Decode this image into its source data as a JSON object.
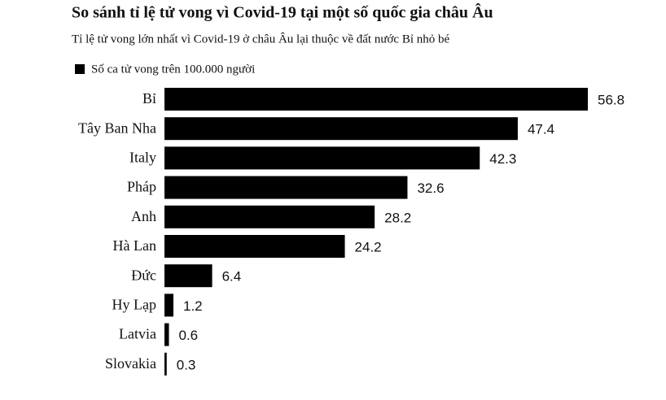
{
  "chart_data": {
    "type": "bar",
    "orientation": "horizontal",
    "title": "So sánh tỉ lệ tử vong vì Covid-19 tại một số quốc gia châu Âu",
    "subtitle": "Tỉ lệ tử vong lớn nhất vì Covid-19 ở châu Âu lại thuộc về đất nước Bỉ nhỏ bé",
    "categories": [
      "Bỉ",
      "Tây Ban Nha",
      "Italy",
      "Pháp",
      "Anh",
      "Hà Lan",
      "Đức",
      "Hy Lạp",
      "Latvia",
      "Slovakia"
    ],
    "series": [
      {
        "name": "Số ca tử vong trên 100.000 người",
        "color": "#000000",
        "values": [
          56.8,
          47.4,
          42.3,
          32.6,
          28.2,
          24.2,
          6.4,
          1.2,
          0.6,
          0.3
        ]
      }
    ],
    "legend": "top-left"
  }
}
